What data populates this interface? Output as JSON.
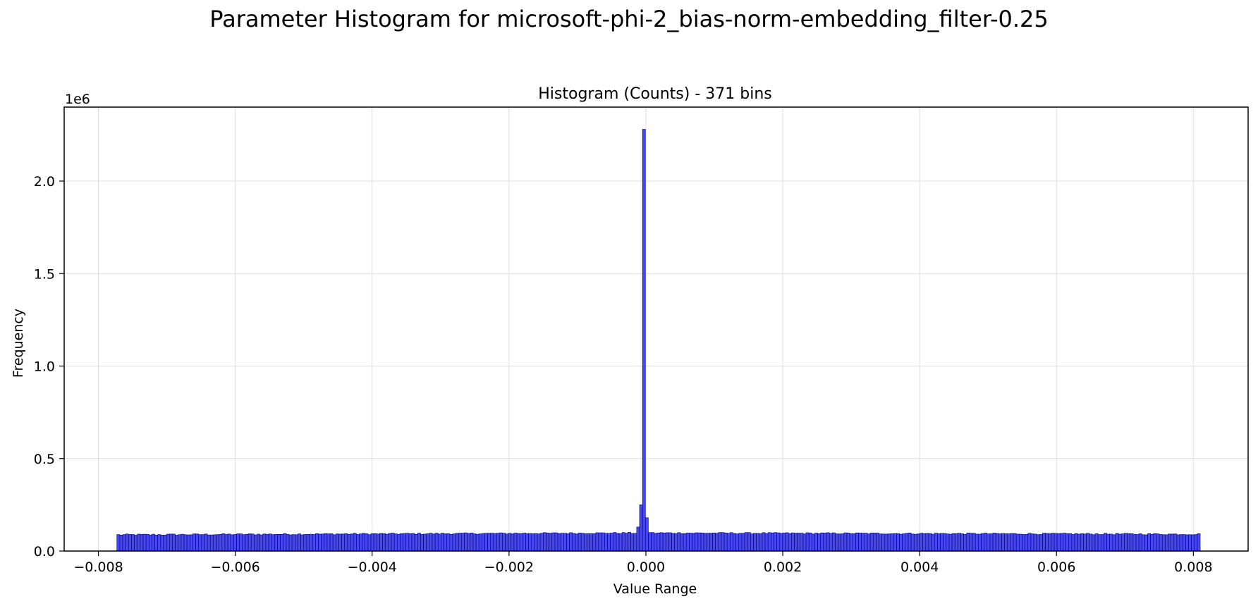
{
  "figure": {
    "suptitle": "Parameter Histogram for microsoft-phi-2_bias-norm-embedding_filter-0.25"
  },
  "chart_data": {
    "type": "bar",
    "title": "Histogram (Counts) - 371 bins",
    "xlabel": "Value Range",
    "ylabel": "Frequency",
    "y_offset_label": "1e6",
    "bins": 371,
    "x_range": [
      -0.00773,
      0.0081
    ],
    "xlim": [
      -0.0085,
      0.0088
    ],
    "ylim": [
      0,
      2.4
    ],
    "y_units": "millions (1e6)",
    "x_ticks": [
      -0.008,
      -0.006,
      -0.004,
      -0.002,
      0.0,
      0.002,
      0.004,
      0.006,
      0.008
    ],
    "x_tick_labels": [
      "−0.008",
      "−0.006",
      "−0.004",
      "−0.002",
      "0.000",
      "0.002",
      "0.004",
      "0.006",
      "0.008"
    ],
    "y_ticks": [
      0.0,
      0.5,
      1.0,
      1.5,
      2.0
    ],
    "y_tick_labels": [
      "0.0",
      "0.5",
      "1.0",
      "1.5",
      "2.0"
    ],
    "grid": true,
    "bar_color": "#3333ee",
    "edge_color": "#000066",
    "baseline_left_value": 0.088,
    "baseline_center_value": 0.098,
    "baseline_right_value": 0.091,
    "near_zero_bins": [
      {
        "x": -0.00011,
        "value": 0.13
      },
      {
        "x": -7e-05,
        "value": 0.25
      },
      {
        "x": -2e-05,
        "value": 2.28
      },
      {
        "x": 2e-05,
        "value": 0.18
      },
      {
        "x": 6e-05,
        "value": 0.1
      }
    ]
  }
}
